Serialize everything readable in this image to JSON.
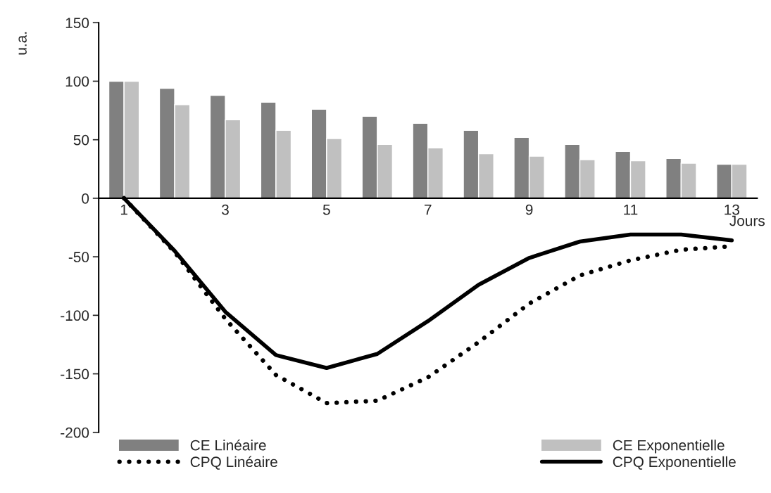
{
  "chart_data": {
    "type": "bar",
    "xlabel": "Jours",
    "ylabel": "u.a.",
    "categories": [
      "1",
      null,
      "3",
      null,
      "5",
      null,
      "7",
      null,
      "9",
      null,
      "11",
      null,
      "13"
    ],
    "series": [
      {
        "name": "CE Linéaire",
        "color": "#808080",
        "values": [
          100,
          94,
          88,
          82,
          76,
          70,
          64,
          58,
          52,
          46,
          40,
          34,
          29
        ]
      },
      {
        "name": "CE Exponentielle",
        "color": "#c0c0c0",
        "values": [
          100,
          80,
          67,
          58,
          51,
          46,
          43,
          38,
          36,
          33,
          32,
          30,
          29
        ]
      },
      {
        "name": "CPQ Linéaire",
        "type": "line",
        "color": "#000000",
        "line_style": "dotted",
        "values": [
          0,
          -46,
          -103,
          -151,
          -175,
          -173,
          -153,
          -123,
          -90,
          -66,
          -53,
          -44,
          -41
        ]
      },
      {
        "name": "CPQ Exponentielle",
        "type": "line",
        "color": "#000000",
        "line_style": "solid",
        "values": [
          0,
          -45,
          -97,
          -134,
          -145,
          -133,
          -105,
          -74,
          -51,
          -37,
          -31,
          -31,
          -36
        ]
      }
    ],
    "ylim": [
      -200,
      150
    ],
    "yticks": [
      -200,
      -150,
      -100,
      -50,
      0,
      50,
      100,
      150
    ],
    "grid": false,
    "legend": "bottom"
  }
}
